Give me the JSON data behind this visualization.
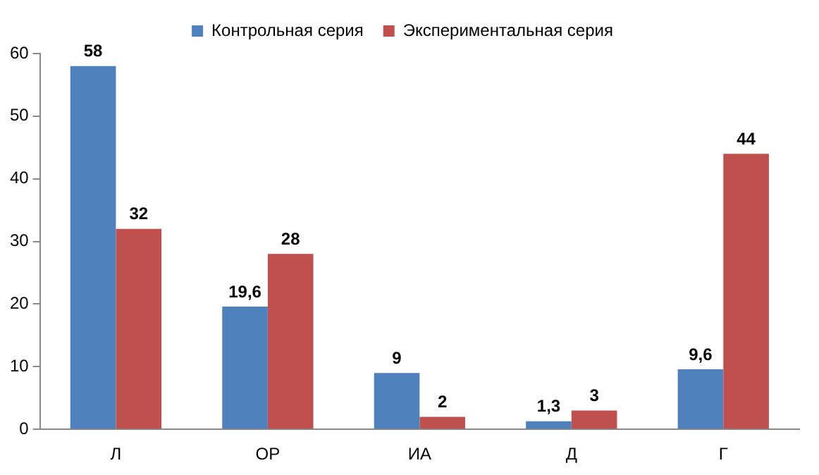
{
  "chart_data": {
    "type": "bar",
    "categories": [
      "Л",
      "ОР",
      "ИА",
      "Д",
      "Г"
    ],
    "series": [
      {
        "name": "Контрольная серия",
        "color": "#4f81bd",
        "values": [
          58,
          19.6,
          9,
          1.3,
          9.6
        ],
        "value_labels": [
          "58",
          "19,6",
          "9",
          "1,3",
          "9,6"
        ]
      },
      {
        "name": "Экспериментальная серия",
        "color": "#c0504d",
        "values": [
          32,
          28,
          2,
          3,
          44
        ],
        "value_labels": [
          "32",
          "28",
          "2",
          "3",
          "44"
        ]
      }
    ],
    "ylim": [
      0,
      60
    ],
    "yticks": [
      0,
      10,
      20,
      30,
      40,
      50,
      60
    ],
    "legend": "top"
  }
}
